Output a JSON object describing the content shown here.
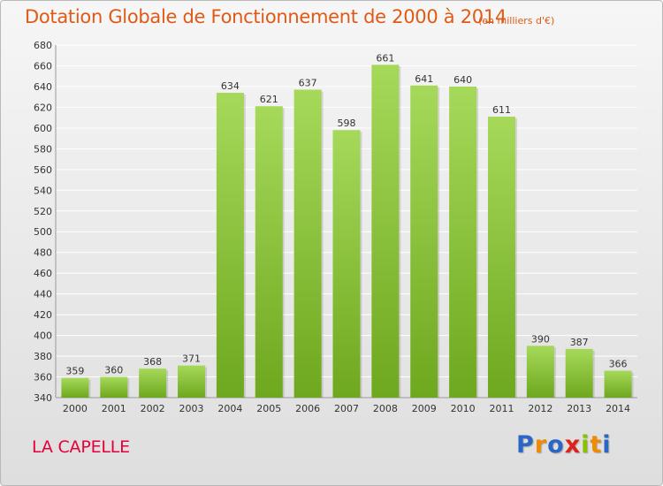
{
  "title": "Dotation Globale de Fonctionnement de 2000 à 2014",
  "subtitle": "(en milliers d'€)",
  "city": "LA CAPELLE",
  "logo": {
    "text": "Proxiti",
    "letters": [
      "P",
      "r",
      "o",
      "x",
      "i",
      "t",
      "i"
    ]
  },
  "colors": {
    "title": "#e05a16",
    "city": "#e4003a",
    "bar_top": "#a6d95a",
    "bar_bottom": "#6ea81e",
    "grid": "#ffffff",
    "axis_text": "#333333"
  },
  "chart_data": {
    "type": "bar",
    "categories": [
      "2000",
      "2001",
      "2002",
      "2003",
      "2004",
      "2005",
      "2006",
      "2007",
      "2008",
      "2009",
      "2010",
      "2011",
      "2012",
      "2013",
      "2014"
    ],
    "values": [
      359,
      360,
      368,
      371,
      634,
      621,
      637,
      598,
      661,
      641,
      640,
      611,
      390,
      387,
      366
    ],
    "ylim": [
      340,
      680
    ],
    "ytick_step": 20,
    "grid": true,
    "data_labels": true
  }
}
